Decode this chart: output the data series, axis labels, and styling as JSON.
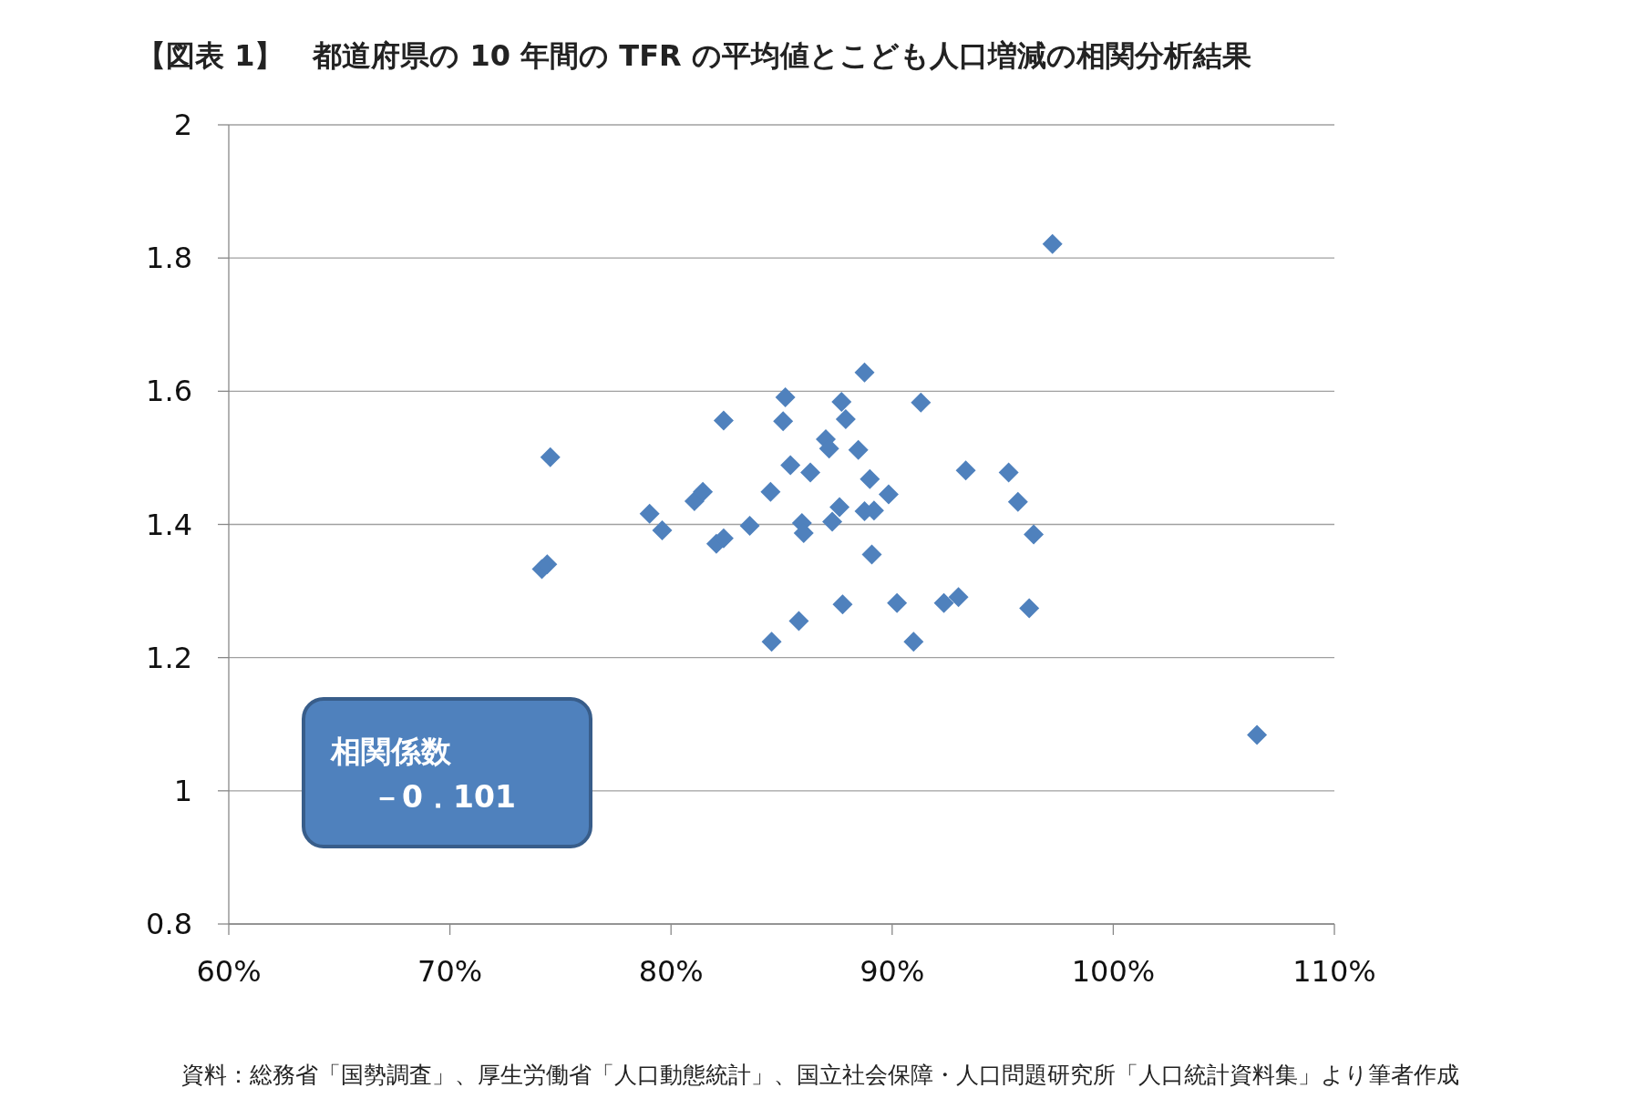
{
  "chart_data": {
    "type": "scatter",
    "title": "【図表 1】　都道府県の 10 年間の TFR の平均値とこども人口増減の相関分析結果",
    "x": [
      97.25,
      106.5,
      74.54,
      74.16,
      74.4,
      79.03,
      79.6,
      81.06,
      81.44,
      82.38,
      82.05,
      82.38,
      83.56,
      84.5,
      84.55,
      85.17,
      85.07,
      85.4,
      85.78,
      85.92,
      86.0,
      86.3,
      87.0,
      87.15,
      87.29,
      87.62,
      87.71,
      87.9,
      87.76,
      88.47,
      88.75,
      88.75,
      88.99,
      89.18,
      89.08,
      89.84,
      90.22,
      90.97,
      91.3,
      92.34,
      93.0,
      93.33,
      95.27,
      95.69,
      96.4,
      96.2
    ],
    "values": [
      1.821,
      1.084,
      1.501,
      1.333,
      1.34,
      1.416,
      1.391,
      1.435,
      1.449,
      1.556,
      1.371,
      1.379,
      1.398,
      1.449,
      1.224,
      1.591,
      1.555,
      1.489,
      1.255,
      1.402,
      1.387,
      1.478,
      1.528,
      1.514,
      1.404,
      1.426,
      1.584,
      1.558,
      1.28,
      1.512,
      1.628,
      1.42,
      1.468,
      1.421,
      1.355,
      1.445,
      1.282,
      1.224,
      1.583,
      1.282,
      1.291,
      1.481,
      1.478,
      1.434,
      1.385,
      1.274
    ],
    "color": "#4f81bd",
    "marker": "diamond",
    "grid": "y",
    "xlim": [
      60,
      110
    ],
    "xticks": [
      {
        "value": 60,
        "label": "60%"
      },
      {
        "value": 70,
        "label": "70%"
      },
      {
        "value": 80,
        "label": "80%"
      },
      {
        "value": 90,
        "label": "90%"
      },
      {
        "value": 100,
        "label": "100%"
      },
      {
        "value": 110,
        "label": "110%"
      }
    ],
    "ylim": [
      0.8,
      2
    ],
    "yticks": [
      0.8,
      1,
      1.2,
      1.4,
      1.6,
      1.8,
      2
    ],
    "annotations": [
      "相関係数",
      "－0．101",
      "資料：総務省「国勢調査」、厚生労働省「人口動態統計」、国立社会保障・人口問題研究所「人口統計資料集」より筆者作成"
    ]
  }
}
